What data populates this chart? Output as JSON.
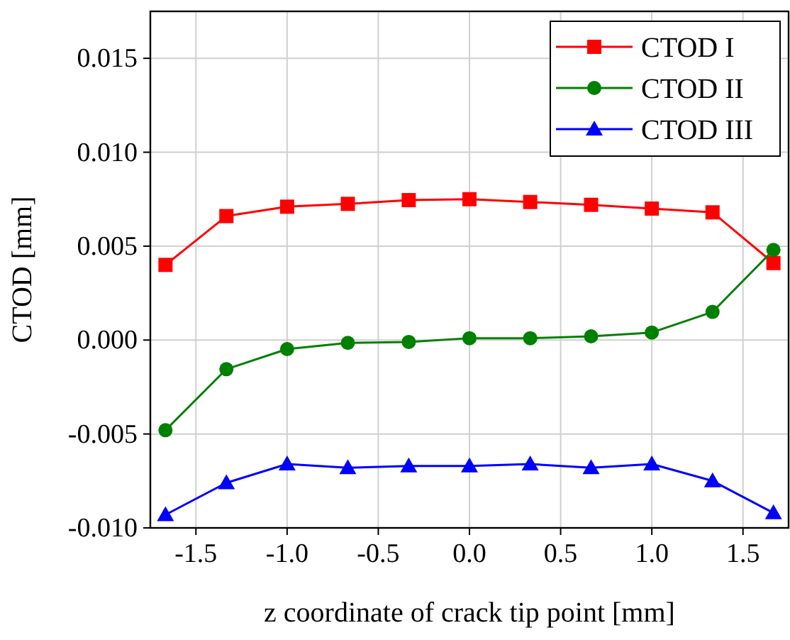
{
  "chart_data": {
    "type": "line",
    "xlabel": "z coordinate of crack tip point [mm]",
    "ylabel": "CTOD [mm]",
    "x": [
      -1.667,
      -1.333,
      -1,
      -0.667,
      -0.333,
      0,
      0.333,
      0.667,
      1,
      1.333,
      1.667
    ],
    "series": [
      {
        "name": "CTOD I",
        "color": "#ff0000",
        "marker": "square",
        "values": [
          0.004,
          0.0066,
          0.0071,
          0.00725,
          0.00745,
          0.0075,
          0.00735,
          0.0072,
          0.007,
          0.0068,
          0.0041
        ]
      },
      {
        "name": "CTOD II",
        "color": "#008000",
        "marker": "circle",
        "values": [
          -0.0048,
          -0.00155,
          -0.00048,
          -0.00015,
          -0.0001,
          0.0001,
          0.0001,
          0.0002,
          0.0004,
          0.0015,
          0.0048
        ]
      },
      {
        "name": "CTOD III",
        "color": "#0000ff",
        "marker": "triangle",
        "values": [
          -0.0093,
          -0.0076,
          -0.0066,
          -0.0068,
          -0.0067,
          -0.0067,
          -0.0066,
          -0.0068,
          -0.0066,
          -0.0075,
          -0.0092
        ]
      }
    ],
    "xlim": [
      -1.75,
      1.75
    ],
    "xticks": [
      {
        "value": -1.5,
        "label": "-1.5"
      },
      {
        "value": -1,
        "label": "-1.0"
      },
      {
        "value": -0.5,
        "label": "-0.5"
      },
      {
        "value": 0,
        "label": "0.0"
      },
      {
        "value": 0.5,
        "label": "0.5"
      },
      {
        "value": 1,
        "label": "1.0"
      },
      {
        "value": 1.5,
        "label": "1.5"
      }
    ],
    "ylim": [
      -0.01,
      0.0175
    ],
    "yticks": [
      {
        "value": -0.01,
        "label": "-0.010"
      },
      {
        "value": -0.005,
        "label": "-0.005"
      },
      {
        "value": 0,
        "label": "0.000"
      },
      {
        "value": 0.005,
        "label": "0.005"
      },
      {
        "value": 0.01,
        "label": "0.010"
      },
      {
        "value": 0.015,
        "label": "0.015"
      }
    ],
    "grid": true,
    "legend": "top right",
    "line_style": "solid"
  }
}
